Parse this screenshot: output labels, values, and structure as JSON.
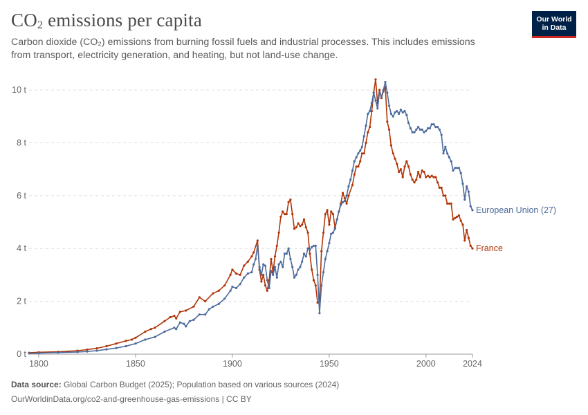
{
  "header": {
    "title_main": "CO",
    "title_sub": "2",
    "title_rest": " emissions per capita",
    "subtitle_line1": "Carbon dioxide (CO₂) emissions from burning fossil fuels and industrial processes. This includes emissions",
    "subtitle_line2": "from transport, electricity generation, and heating, but not land-use change."
  },
  "logo": {
    "line1": "Our World",
    "line2": "in Data"
  },
  "footer": {
    "source_label": "Data source:",
    "source_text": " Global Carbon Budget (2025); Population based on various sources (2024)",
    "url_text": "OurWorldinData.org/co2-and-greenhouse-gas-emissions | CC BY"
  },
  "chart_data": {
    "type": "line",
    "title": "CO₂ emissions per capita",
    "xlabel": "",
    "ylabel": "",
    "xlim": [
      1795,
      2024
    ],
    "ylim": [
      0,
      10.5
    ],
    "x_ticks": [
      1800,
      1850,
      1900,
      1950,
      2000,
      2024
    ],
    "x_tick_labels": [
      "1800",
      "1850",
      "1900",
      "1950",
      "2000",
      "2024"
    ],
    "y_ticks": [
      0,
      2,
      4,
      6,
      8,
      10
    ],
    "y_tick_labels": [
      "0 t",
      "2 t",
      "4 t",
      "6 t",
      "8 t",
      "10 t"
    ],
    "grid": true,
    "legend": "inline-right",
    "series": [
      {
        "name": "France",
        "color": "#b13507",
        "points": [
          [
            1795,
            0.05
          ],
          [
            1800,
            0.07
          ],
          [
            1810,
            0.09
          ],
          [
            1820,
            0.13
          ],
          [
            1825,
            0.17
          ],
          [
            1830,
            0.22
          ],
          [
            1835,
            0.3
          ],
          [
            1840,
            0.4
          ],
          [
            1845,
            0.5
          ],
          [
            1848,
            0.55
          ],
          [
            1850,
            0.62
          ],
          [
            1855,
            0.85
          ],
          [
            1858,
            0.95
          ],
          [
            1860,
            1.0
          ],
          [
            1865,
            1.25
          ],
          [
            1868,
            1.4
          ],
          [
            1870,
            1.45
          ],
          [
            1871,
            1.35
          ],
          [
            1873,
            1.6
          ],
          [
            1876,
            1.65
          ],
          [
            1880,
            1.8
          ],
          [
            1883,
            2.15
          ],
          [
            1886,
            2.0
          ],
          [
            1890,
            2.3
          ],
          [
            1893,
            2.4
          ],
          [
            1896,
            2.6
          ],
          [
            1899,
            3.0
          ],
          [
            1900,
            3.2
          ],
          [
            1902,
            3.05
          ],
          [
            1904,
            3.0
          ],
          [
            1906,
            3.35
          ],
          [
            1908,
            3.5
          ],
          [
            1910,
            3.7
          ],
          [
            1911,
            3.85
          ],
          [
            1913,
            4.3
          ],
          [
            1914,
            3.2
          ],
          [
            1915,
            2.75
          ],
          [
            1916,
            3.0
          ],
          [
            1917,
            2.6
          ],
          [
            1918,
            2.4
          ],
          [
            1919,
            2.8
          ],
          [
            1920,
            3.6
          ],
          [
            1921,
            3.1
          ],
          [
            1922,
            3.7
          ],
          [
            1923,
            4.1
          ],
          [
            1924,
            4.6
          ],
          [
            1925,
            5.2
          ],
          [
            1926,
            5.4
          ],
          [
            1927,
            5.3
          ],
          [
            1928,
            5.3
          ],
          [
            1929,
            5.75
          ],
          [
            1930,
            5.85
          ],
          [
            1931,
            5.3
          ],
          [
            1932,
            4.75
          ],
          [
            1933,
            4.8
          ],
          [
            1934,
            4.95
          ],
          [
            1935,
            4.85
          ],
          [
            1936,
            4.9
          ],
          [
            1937,
            5.1
          ],
          [
            1938,
            4.8
          ],
          [
            1939,
            4.6
          ],
          [
            1940,
            3.8
          ],
          [
            1941,
            3.2
          ],
          [
            1942,
            2.8
          ],
          [
            1943,
            2.6
          ],
          [
            1944,
            1.95
          ],
          [
            1945,
            2.0
          ],
          [
            1946,
            3.9
          ],
          [
            1947,
            4.6
          ],
          [
            1948,
            5.3
          ],
          [
            1949,
            5.45
          ],
          [
            1950,
            4.9
          ],
          [
            1951,
            5.4
          ],
          [
            1952,
            5.3
          ],
          [
            1953,
            4.8
          ],
          [
            1954,
            5.1
          ],
          [
            1955,
            5.4
          ],
          [
            1956,
            5.7
          ],
          [
            1957,
            6.1
          ],
          [
            1958,
            5.9
          ],
          [
            1959,
            5.7
          ],
          [
            1960,
            6.0
          ],
          [
            1962,
            6.4
          ],
          [
            1963,
            6.8
          ],
          [
            1964,
            7.1
          ],
          [
            1965,
            7.1
          ],
          [
            1966,
            7.3
          ],
          [
            1967,
            7.6
          ],
          [
            1968,
            7.6
          ],
          [
            1969,
            8.0
          ],
          [
            1970,
            8.4
          ],
          [
            1971,
            8.6
          ],
          [
            1972,
            9.2
          ],
          [
            1973,
            9.9
          ],
          [
            1974,
            10.4
          ],
          [
            1975,
            9.5
          ],
          [
            1976,
            10.0
          ],
          [
            1977,
            9.7
          ],
          [
            1978,
            9.95
          ],
          [
            1979,
            10.1
          ],
          [
            1980,
            8.8
          ],
          [
            1981,
            8.5
          ],
          [
            1982,
            7.9
          ],
          [
            1983,
            7.6
          ],
          [
            1984,
            7.4
          ],
          [
            1985,
            7.2
          ],
          [
            1986,
            6.9
          ],
          [
            1987,
            7.0
          ],
          [
            1988,
            6.7
          ],
          [
            1989,
            7.1
          ],
          [
            1990,
            7.3
          ],
          [
            1991,
            7.1
          ],
          [
            1992,
            6.8
          ],
          [
            1993,
            6.6
          ],
          [
            1994,
            6.5
          ],
          [
            1995,
            6.6
          ],
          [
            1996,
            6.9
          ],
          [
            1997,
            6.7
          ],
          [
            1998,
            6.95
          ],
          [
            1999,
            6.9
          ],
          [
            2000,
            6.7
          ],
          [
            2001,
            6.75
          ],
          [
            2002,
            6.7
          ],
          [
            2003,
            6.75
          ],
          [
            2004,
            6.7
          ],
          [
            2005,
            6.7
          ],
          [
            2006,
            6.5
          ],
          [
            2007,
            6.3
          ],
          [
            2008,
            6.3
          ],
          [
            2009,
            6.0
          ],
          [
            2010,
            6.0
          ],
          [
            2011,
            5.7
          ],
          [
            2012,
            5.7
          ],
          [
            2013,
            5.7
          ],
          [
            2014,
            5.1
          ],
          [
            2015,
            5.15
          ],
          [
            2016,
            5.2
          ],
          [
            2017,
            5.25
          ],
          [
            2018,
            5.05
          ],
          [
            2019,
            4.9
          ],
          [
            2020,
            4.3
          ],
          [
            2021,
            4.7
          ],
          [
            2022,
            4.4
          ],
          [
            2023,
            4.1
          ],
          [
            2024,
            4.0
          ]
        ]
      },
      {
        "name": "European Union (27)",
        "color": "#4c6a9c",
        "points": [
          [
            1795,
            0.03
          ],
          [
            1800,
            0.04
          ],
          [
            1810,
            0.06
          ],
          [
            1820,
            0.08
          ],
          [
            1825,
            0.1
          ],
          [
            1830,
            0.13
          ],
          [
            1835,
            0.18
          ],
          [
            1840,
            0.23
          ],
          [
            1845,
            0.3
          ],
          [
            1850,
            0.4
          ],
          [
            1855,
            0.55
          ],
          [
            1860,
            0.65
          ],
          [
            1865,
            0.85
          ],
          [
            1870,
            1.0
          ],
          [
            1871,
            0.95
          ],
          [
            1873,
            1.2
          ],
          [
            1875,
            1.15
          ],
          [
            1876,
            1.05
          ],
          [
            1878,
            1.25
          ],
          [
            1880,
            1.3
          ],
          [
            1883,
            1.5
          ],
          [
            1886,
            1.5
          ],
          [
            1888,
            1.7
          ],
          [
            1890,
            1.8
          ],
          [
            1893,
            1.9
          ],
          [
            1896,
            2.1
          ],
          [
            1899,
            2.4
          ],
          [
            1900,
            2.55
          ],
          [
            1902,
            2.5
          ],
          [
            1904,
            2.65
          ],
          [
            1906,
            2.9
          ],
          [
            1908,
            3.05
          ],
          [
            1910,
            3.1
          ],
          [
            1911,
            3.4
          ],
          [
            1912,
            3.6
          ],
          [
            1913,
            4.1
          ],
          [
            1914,
            3.3
          ],
          [
            1915,
            3.0
          ],
          [
            1916,
            3.4
          ],
          [
            1917,
            3.35
          ],
          [
            1918,
            2.8
          ],
          [
            1919,
            2.5
          ],
          [
            1920,
            3.15
          ],
          [
            1921,
            3.0
          ],
          [
            1922,
            3.3
          ],
          [
            1923,
            2.9
          ],
          [
            1924,
            3.4
          ],
          [
            1925,
            3.5
          ],
          [
            1926,
            3.3
          ],
          [
            1927,
            3.8
          ],
          [
            1928,
            3.8
          ],
          [
            1929,
            4.0
          ],
          [
            1930,
            3.6
          ],
          [
            1931,
            3.3
          ],
          [
            1932,
            2.9
          ],
          [
            1933,
            3.0
          ],
          [
            1934,
            3.2
          ],
          [
            1935,
            3.3
          ],
          [
            1936,
            3.5
          ],
          [
            1937,
            3.8
          ],
          [
            1938,
            3.7
          ],
          [
            1939,
            4.0
          ],
          [
            1940,
            3.95
          ],
          [
            1941,
            4.05
          ],
          [
            1942,
            4.1
          ],
          [
            1943,
            4.1
          ],
          [
            1944,
            3.0
          ],
          [
            1945,
            1.55
          ],
          [
            1946,
            2.6
          ],
          [
            1947,
            3.1
          ],
          [
            1948,
            3.6
          ],
          [
            1949,
            3.9
          ],
          [
            1950,
            4.2
          ],
          [
            1951,
            4.55
          ],
          [
            1952,
            4.6
          ],
          [
            1953,
            4.75
          ],
          [
            1954,
            5.1
          ],
          [
            1955,
            5.4
          ],
          [
            1956,
            5.65
          ],
          [
            1957,
            5.75
          ],
          [
            1958,
            5.8
          ],
          [
            1959,
            6.0
          ],
          [
            1960,
            6.35
          ],
          [
            1961,
            6.6
          ],
          [
            1962,
            6.95
          ],
          [
            1963,
            7.3
          ],
          [
            1964,
            7.45
          ],
          [
            1965,
            7.6
          ],
          [
            1966,
            7.7
          ],
          [
            1967,
            7.85
          ],
          [
            1968,
            8.25
          ],
          [
            1969,
            8.65
          ],
          [
            1970,
            9.1
          ],
          [
            1971,
            9.2
          ],
          [
            1972,
            9.5
          ],
          [
            1973,
            9.9
          ],
          [
            1974,
            9.6
          ],
          [
            1975,
            9.3
          ],
          [
            1976,
            9.9
          ],
          [
            1977,
            9.75
          ],
          [
            1978,
            10.0
          ],
          [
            1979,
            10.3
          ],
          [
            1980,
            9.9
          ],
          [
            1981,
            9.4
          ],
          [
            1982,
            9.1
          ],
          [
            1983,
            9.0
          ],
          [
            1984,
            9.15
          ],
          [
            1985,
            9.2
          ],
          [
            1986,
            9.1
          ],
          [
            1987,
            9.25
          ],
          [
            1988,
            9.15
          ],
          [
            1989,
            9.2
          ],
          [
            1990,
            9.05
          ],
          [
            1991,
            8.75
          ],
          [
            1992,
            8.55
          ],
          [
            1993,
            8.4
          ],
          [
            1994,
            8.4
          ],
          [
            1995,
            8.5
          ],
          [
            1996,
            8.6
          ],
          [
            1997,
            8.5
          ],
          [
            1998,
            8.5
          ],
          [
            1999,
            8.4
          ],
          [
            2000,
            8.45
          ],
          [
            2001,
            8.55
          ],
          [
            2002,
            8.55
          ],
          [
            2003,
            8.7
          ],
          [
            2004,
            8.7
          ],
          [
            2005,
            8.6
          ],
          [
            2006,
            8.6
          ],
          [
            2007,
            8.5
          ],
          [
            2008,
            8.3
          ],
          [
            2009,
            7.6
          ],
          [
            2010,
            7.85
          ],
          [
            2011,
            7.6
          ],
          [
            2012,
            7.45
          ],
          [
            2013,
            7.3
          ],
          [
            2014,
            6.95
          ],
          [
            2015,
            7.05
          ],
          [
            2016,
            7.05
          ],
          [
            2017,
            7.05
          ],
          [
            2018,
            6.85
          ],
          [
            2019,
            6.45
          ],
          [
            2020,
            5.85
          ],
          [
            2021,
            6.35
          ],
          [
            2022,
            6.15
          ],
          [
            2023,
            5.6
          ],
          [
            2024,
            5.45
          ]
        ]
      }
    ]
  }
}
